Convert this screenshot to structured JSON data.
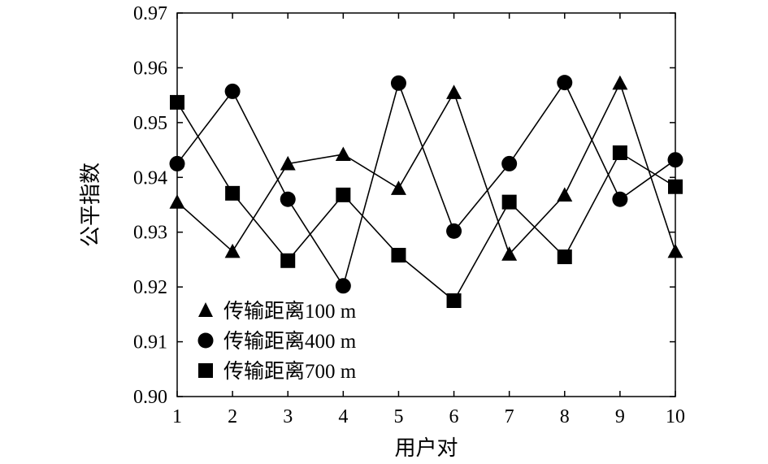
{
  "chart_data": {
    "type": "line",
    "title": "",
    "xlabel": "用户对",
    "ylabel": "公平指数",
    "x": [
      1,
      2,
      3,
      4,
      5,
      6,
      7,
      8,
      9,
      10
    ],
    "xlim": [
      1,
      10
    ],
    "ylim": [
      0.9,
      0.97
    ],
    "xticks": [
      "1",
      "2",
      "3",
      "4",
      "5",
      "6",
      "7",
      "8",
      "9",
      "10"
    ],
    "yticks": [
      "0.90",
      "0.91",
      "0.92",
      "0.93",
      "0.94",
      "0.95",
      "0.96",
      "0.97"
    ],
    "grid": false,
    "legend_position": "bottom-left",
    "series": [
      {
        "name": "传输距离100 m",
        "marker": "triangle",
        "values": [
          0.9355,
          0.9265,
          0.9425,
          0.9442,
          0.938,
          0.9555,
          0.926,
          0.9368,
          0.9572,
          0.9265
        ]
      },
      {
        "name": "传输距离400 m",
        "marker": "circle",
        "values": [
          0.9425,
          0.9557,
          0.936,
          0.9202,
          0.9572,
          0.9302,
          0.9425,
          0.9573,
          0.936,
          0.9432
        ]
      },
      {
        "name": "传输距离700 m",
        "marker": "square",
        "values": [
          0.9537,
          0.9371,
          0.9248,
          0.9368,
          0.9258,
          0.9175,
          0.9355,
          0.9255,
          0.9445,
          0.9383
        ]
      }
    ],
    "color": "#000000"
  }
}
